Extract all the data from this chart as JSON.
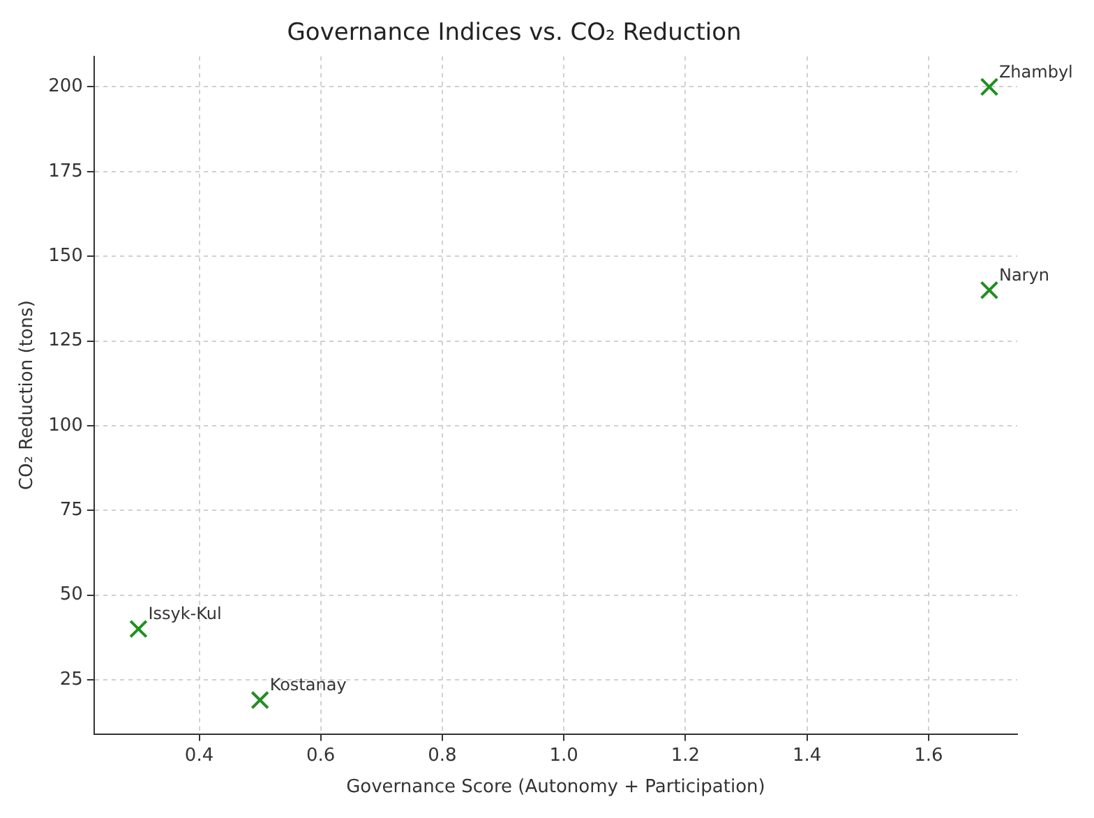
{
  "chart_data": {
    "type": "scatter",
    "title": "Governance Indices vs. CO₂ Reduction",
    "xlabel": "Governance Score (Autonomy + Participation)",
    "ylabel": "CO₂ Reduction (tons)",
    "x": [
      0.3,
      0.5,
      1.7,
      1.7
    ],
    "series": [
      {
        "color": "#1f8f1f",
        "values": [
          40,
          19,
          140,
          200
        ]
      }
    ],
    "annotations": [
      {
        "text": "Issyk-Kul",
        "x": 0.3,
        "y": 40
      },
      {
        "text": "Kostanay",
        "x": 0.5,
        "y": 19
      },
      {
        "text": "Naryn",
        "x": 1.7,
        "y": 140
      },
      {
        "text": "Zhambyl",
        "x": 1.7,
        "y": 200
      }
    ],
    "xlim": [
      0.227,
      1.746
    ],
    "xticks": [
      {
        "value": 0.4,
        "label": "0.4"
      },
      {
        "value": 0.6,
        "label": "0.6"
      },
      {
        "value": 0.8,
        "label": "0.8"
      },
      {
        "value": 1.0,
        "label": "1.0"
      },
      {
        "value": 1.2,
        "label": "1.2"
      },
      {
        "value": 1.4,
        "label": "1.4"
      },
      {
        "value": 1.6,
        "label": "1.6"
      }
    ],
    "ylim": [
      9,
      209
    ],
    "yticks": [
      25,
      50,
      75,
      100,
      125,
      150,
      175,
      200
    ],
    "grid": true,
    "marker": "cross",
    "legend": false
  }
}
